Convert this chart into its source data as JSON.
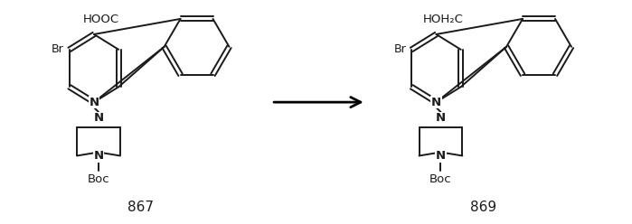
{
  "figure_width": 6.99,
  "figure_height": 2.48,
  "dpi": 100,
  "background_color": "#ffffff",
  "label_867": "867",
  "label_869": "869",
  "group_867": "HOOC",
  "group_869": "HOH₂C",
  "arrow_color": "#000000",
  "line_color": "#1a1a1a",
  "line_width": 1.4,
  "font_size_label": 11,
  "font_size_group": 9.5,
  "font_size_atom": 9
}
